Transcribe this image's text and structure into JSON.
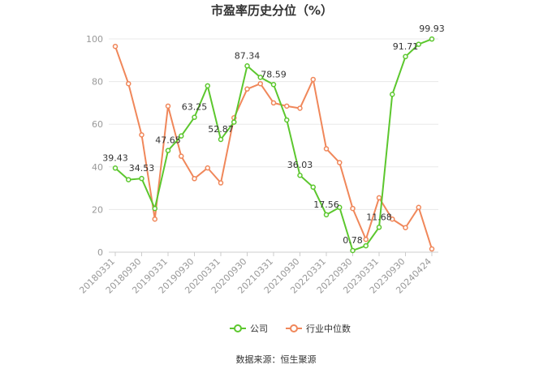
{
  "chart_data": {
    "type": "line",
    "title": "市盈率历史分位（%）",
    "xlabel": "",
    "ylabel": "",
    "ylim": [
      0,
      100
    ],
    "yticks": [
      0,
      20,
      40,
      60,
      80,
      100
    ],
    "grid": true,
    "legend_position": "bottom",
    "x_tick_labels": [
      "20180331",
      "20180930",
      "20190331",
      "20190930",
      "20200331",
      "20200930",
      "20210331",
      "20210930",
      "20220331",
      "20220930",
      "20230331",
      "20230930",
      "20240424"
    ],
    "x": [
      "20180331",
      "20180630",
      "20180930",
      "20181231",
      "20190331",
      "20190630",
      "20190930",
      "20191231",
      "20200331",
      "20200630",
      "20200930",
      "20201231",
      "20210331",
      "20210630",
      "20210930",
      "20211231",
      "20220331",
      "20220630",
      "20220930",
      "20221231",
      "20230331",
      "20230630",
      "20230930",
      "20231231",
      "20240424"
    ],
    "series": [
      {
        "name": "公司",
        "color": "#5cc72e",
        "values": [
          39.43,
          34.0,
          34.53,
          20.5,
          47.65,
          54.5,
          63.25,
          78.0,
          52.87,
          61.0,
          87.34,
          82.0,
          78.59,
          62.0,
          36.03,
          30.5,
          17.56,
          21.0,
          0.78,
          3.0,
          11.68,
          74.0,
          91.71,
          97.5,
          99.93
        ],
        "labels": {
          "0": "39.43",
          "2": "34.53",
          "4": "47.65",
          "6": "63.25",
          "8": "52.87",
          "10": "87.34",
          "12": "78.59",
          "14": "36.03",
          "16": "17.56",
          "18": "0.78",
          "20": "11.68",
          "22": "91.71",
          "24": "99.93"
        }
      },
      {
        "name": "行业中位数",
        "color": "#f0875a",
        "values": [
          96.5,
          79.0,
          55.0,
          15.5,
          68.5,
          45.0,
          34.5,
          39.5,
          32.5,
          63.0,
          76.5,
          79.0,
          70.0,
          68.5,
          67.5,
          81.0,
          48.5,
          42.0,
          20.5,
          6.0,
          25.5,
          15.5,
          11.5,
          21.0,
          1.5
        ]
      }
    ]
  },
  "source_text": "数据来源：恒生聚源"
}
